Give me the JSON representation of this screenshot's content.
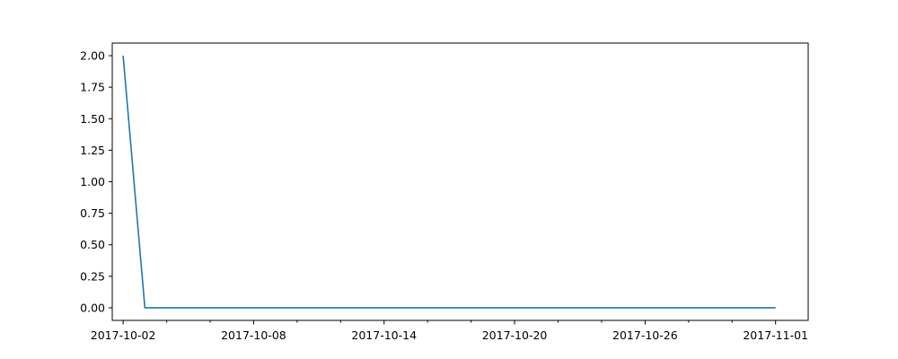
{
  "chart_data": {
    "type": "line",
    "title": "",
    "xlabel": "",
    "ylabel": "",
    "x_axis": "date",
    "xlim": [
      "2017-10-01T12:00",
      "2017-11-02T12:00"
    ],
    "ylim": [
      -0.1,
      2.1
    ],
    "grid": false,
    "legend": "none",
    "x_tick_labels": [
      "2017-10-02",
      "2017-10-08",
      "2017-10-14",
      "2017-10-20",
      "2017-10-26",
      "2017-11-01"
    ],
    "x_minor_ticks": [
      "2017-10-04",
      "2017-10-06",
      "2017-10-10",
      "2017-10-12",
      "2017-10-16",
      "2017-10-18",
      "2017-10-22",
      "2017-10-24",
      "2017-10-28",
      "2017-10-30"
    ],
    "y_ticks": [
      0.0,
      0.25,
      0.5,
      0.75,
      1.0,
      1.25,
      1.5,
      1.75,
      2.0
    ],
    "y_tick_labels": [
      "0.00",
      "0.25",
      "0.50",
      "0.75",
      "1.00",
      "1.25",
      "1.50",
      "1.75",
      "2.00"
    ],
    "series": [
      {
        "color": "#1f77b4",
        "x": [
          "2017-10-02",
          "2017-10-03",
          "2017-11-01"
        ],
        "y": [
          2.0,
          0.0,
          0.0
        ]
      }
    ]
  }
}
